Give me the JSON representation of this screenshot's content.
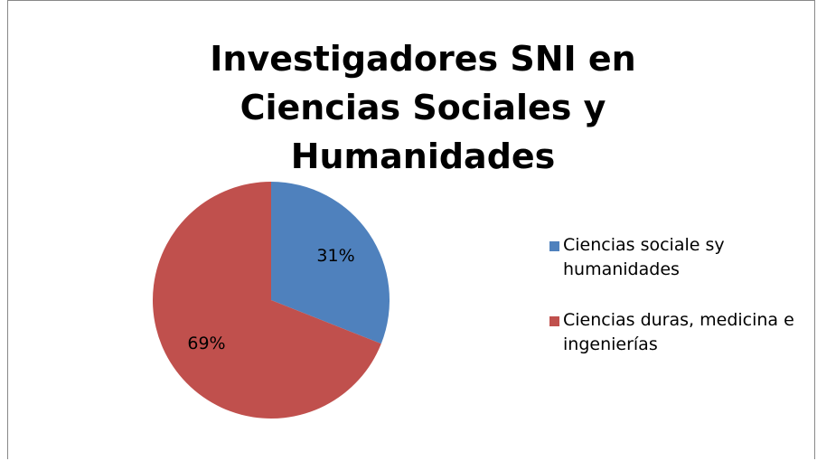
{
  "chart_data": {
    "type": "pie",
    "title": "Investigadores SNI en Ciencias Sociales y Humanidades",
    "categories": [
      "Ciencias sociale sy humanidades",
      "Ciencias duras, medicina e ingenierías"
    ],
    "values": [
      31,
      69
    ],
    "value_labels": [
      "31%",
      "69%"
    ],
    "colors": [
      "#4f81bd",
      "#c0504d"
    ],
    "legend": "right"
  }
}
